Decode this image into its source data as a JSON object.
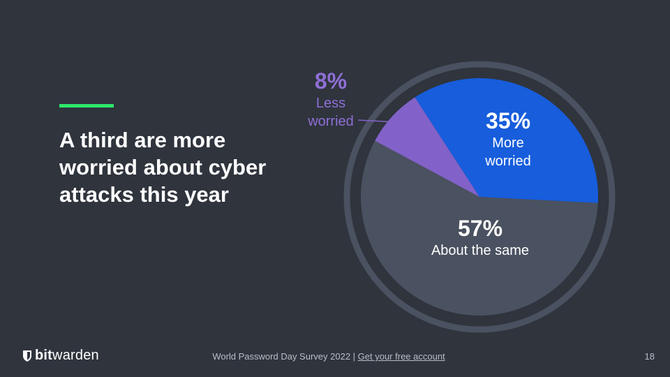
{
  "slide": {
    "headline": "A third are more worried about cyber attacks this year",
    "accent_color": "#2ee86a",
    "background_color": "#2f343d"
  },
  "chart_data": {
    "type": "pie",
    "title": "",
    "slices": [
      {
        "percent_label": "35%",
        "label_lines": [
          "More",
          "worried"
        ],
        "value": 35,
        "color": "#175ddc",
        "label_color": "#ffffff"
      },
      {
        "percent_label": "57%",
        "label_lines": [
          "About the same"
        ],
        "value": 57,
        "color": "#4a5160",
        "label_color": "#ffffff"
      },
      {
        "percent_label": "8%",
        "label_lines": [
          "Less",
          "worried"
        ],
        "value": 8,
        "color": "#8262c8",
        "label_color": "#8f6fd6"
      }
    ],
    "ring_color": "#4a5160"
  },
  "footer": {
    "brand_bold": "bit",
    "brand_regular": "warden",
    "survey_text": "World Password Day Survey 2022 | ",
    "link_text": "Get your free account",
    "page_number": "18",
    "logo_icon": "shield-icon"
  }
}
